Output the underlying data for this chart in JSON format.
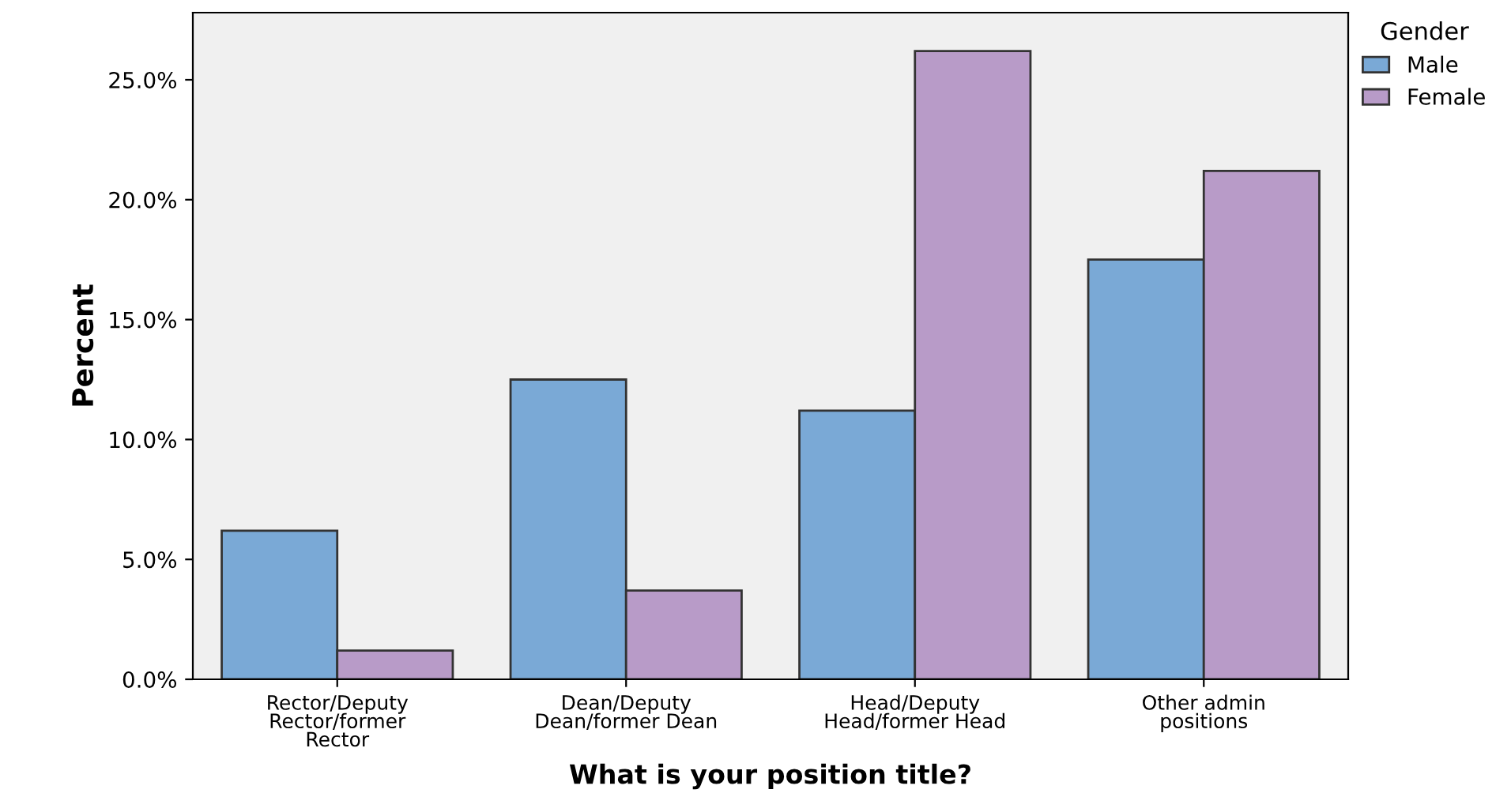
{
  "chart_data": {
    "type": "bar",
    "xlabel": "What is your position title?",
    "ylabel": "Percent",
    "legend_title": "Gender",
    "categories": [
      "Rector/Deputy\nRector/former\nRector",
      "Dean/Deputy\nDean/former Dean",
      "Head/Deputy\nHead/former Head",
      "Other admin\npositions"
    ],
    "series": [
      {
        "name": "Male",
        "color": "#7aa9d6",
        "values": [
          6.2,
          12.5,
          11.2,
          17.5
        ]
      },
      {
        "name": "Female",
        "color": "#b89bc8",
        "values": [
          1.2,
          3.7,
          26.2,
          21.2
        ]
      }
    ],
    "ylim": [
      0,
      27.8
    ],
    "yticks": [
      {
        "value": 0,
        "label": "0.0%"
      },
      {
        "value": 5,
        "label": "5.0%"
      },
      {
        "value": 10,
        "label": "10.0%"
      },
      {
        "value": 15,
        "label": "15.0%"
      },
      {
        "value": 20,
        "label": "20.0%"
      },
      {
        "value": 25,
        "label": "25.0%"
      }
    ],
    "grid": false,
    "legend": "right"
  }
}
